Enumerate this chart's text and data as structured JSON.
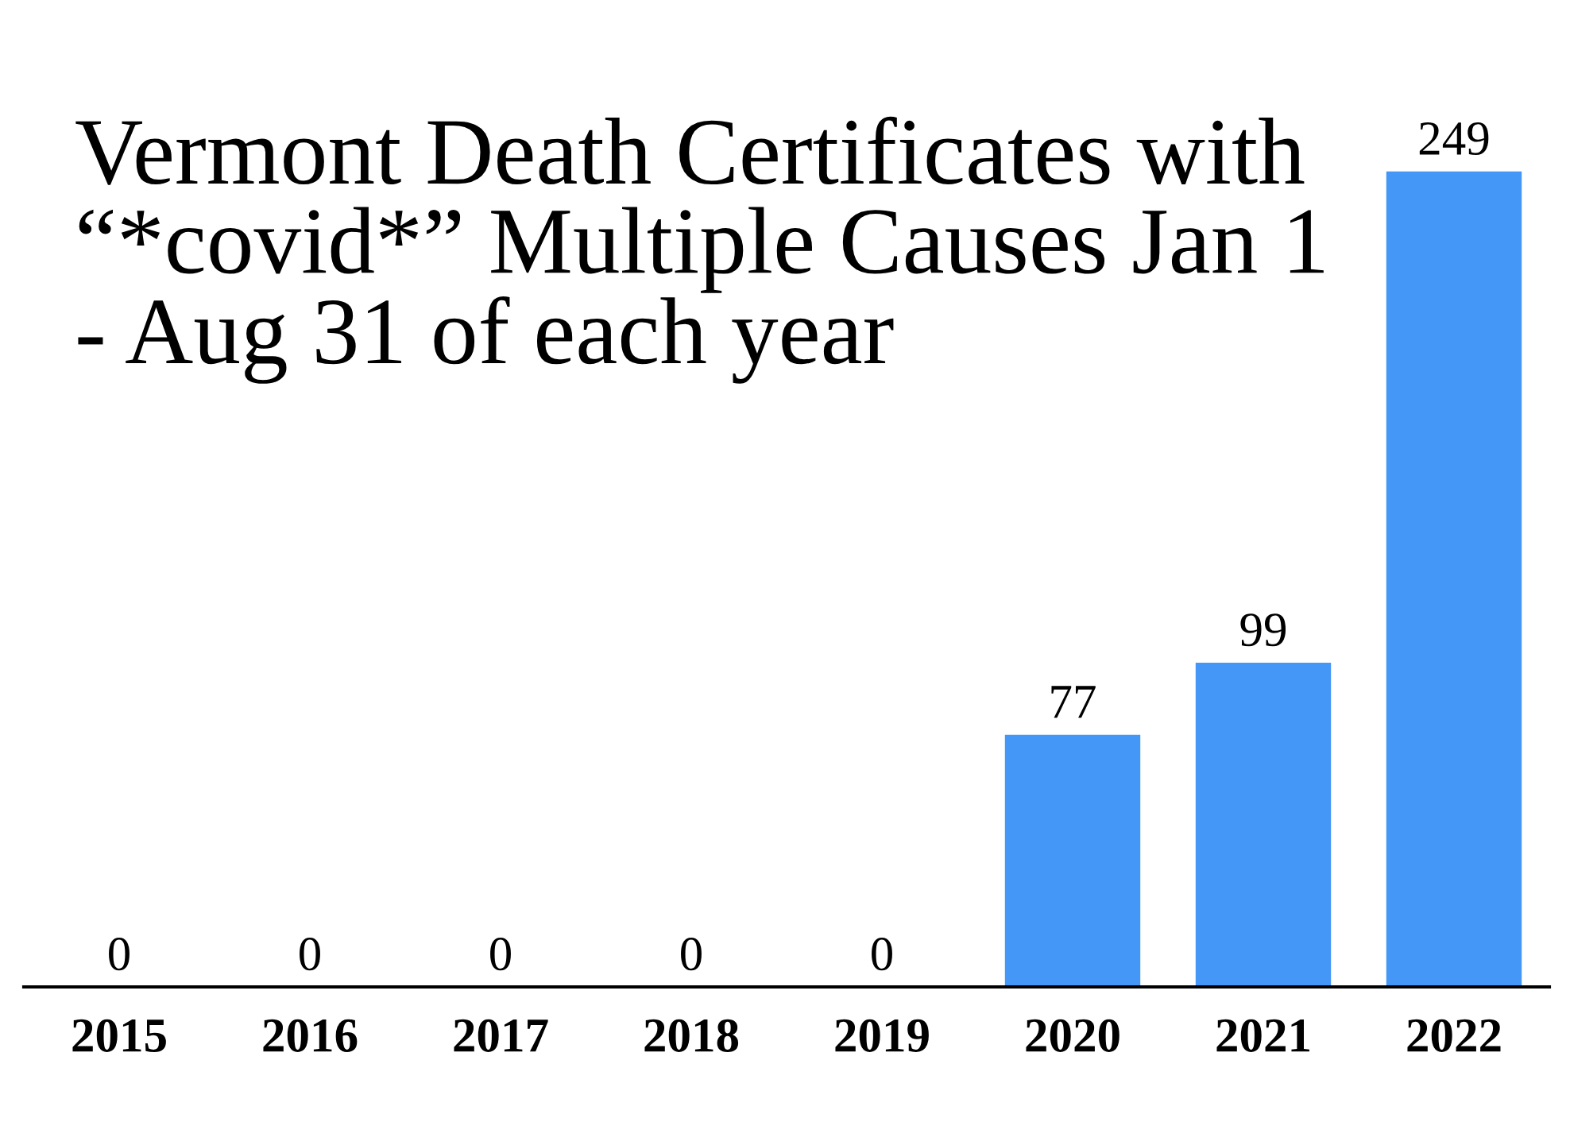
{
  "chart_data": {
    "type": "bar",
    "title": "Vermont Death Certificates with “*covid*” Multiple Causes Jan 1 - Aug 31 of each year",
    "categories": [
      "2015",
      "2016",
      "2017",
      "2018",
      "2019",
      "2020",
      "2021",
      "2022"
    ],
    "values": [
      0,
      0,
      0,
      0,
      0,
      77,
      99,
      249
    ],
    "color": "#4496f7",
    "data_labels": true,
    "grid": false,
    "legend": false
  }
}
